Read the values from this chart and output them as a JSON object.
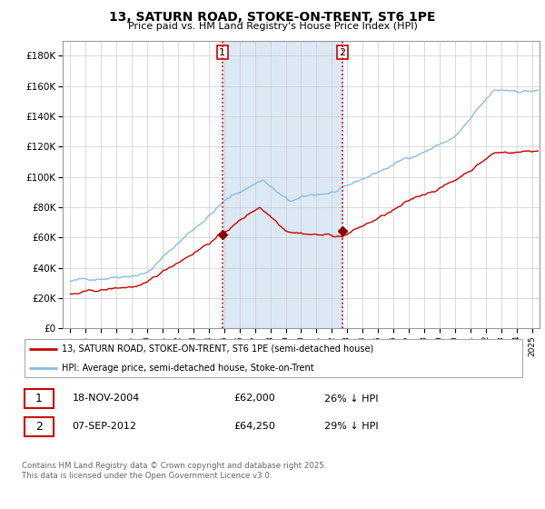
{
  "title": "13, SATURN ROAD, STOKE-ON-TRENT, ST6 1PE",
  "subtitle": "Price paid vs. HM Land Registry's House Price Index (HPI)",
  "hpi_color": "#8bbde0",
  "price_color": "#cc0000",
  "shade_color": "#dce9f5",
  "marker_color": "#880000",
  "ylim": [
    0,
    190000
  ],
  "yticks": [
    0,
    20000,
    40000,
    60000,
    80000,
    100000,
    120000,
    140000,
    160000,
    180000
  ],
  "xlim_start": 1994.5,
  "xlim_end": 2025.5,
  "purchase1_date": 2004.88,
  "purchase1_price": 62000,
  "purchase1_label": "1",
  "purchase2_date": 2012.68,
  "purchase2_price": 64250,
  "purchase2_label": "2",
  "shade_x1": 2004.88,
  "shade_x2": 2012.68,
  "legend_line1": "13, SATURN ROAD, STOKE-ON-TRENT, ST6 1PE (semi-detached house)",
  "legend_line2": "HPI: Average price, semi-detached house, Stoke-on-Trent",
  "table_row1_num": "1",
  "table_row1_date": "18-NOV-2004",
  "table_row1_price": "£62,000",
  "table_row1_hpi": "26% ↓ HPI",
  "table_row2_num": "2",
  "table_row2_date": "07-SEP-2012",
  "table_row2_price": "£64,250",
  "table_row2_hpi": "29% ↓ HPI",
  "footer": "Contains HM Land Registry data © Crown copyright and database right 2025.\nThis data is licensed under the Open Government Licence v3.0."
}
